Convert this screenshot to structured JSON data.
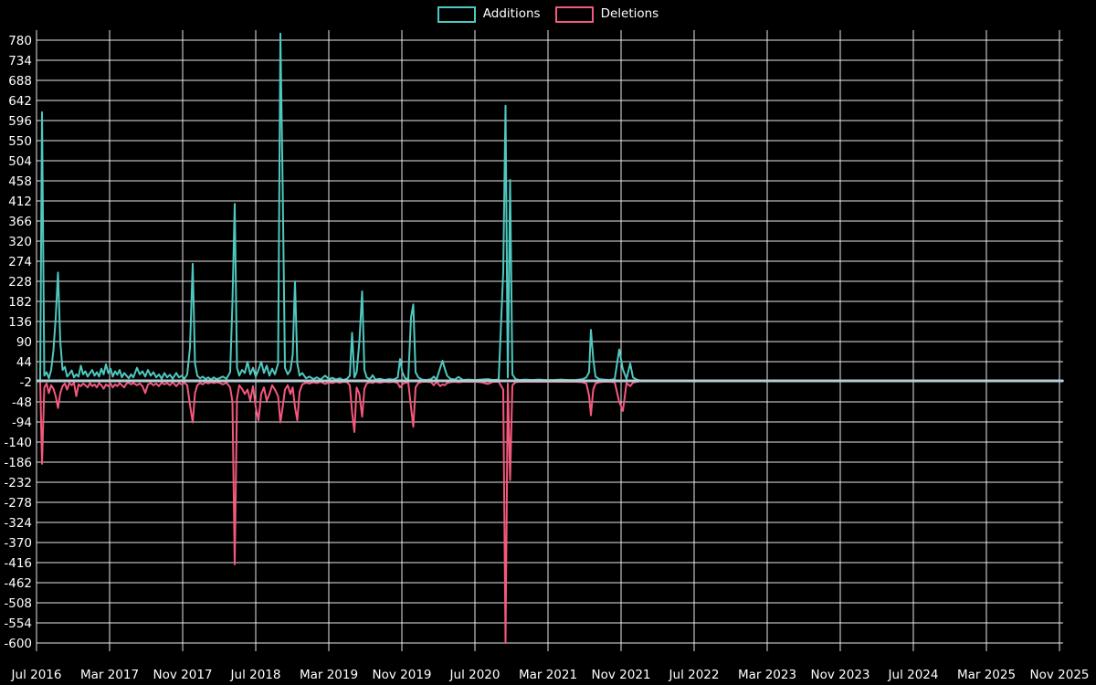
{
  "legend": {
    "items": [
      {
        "label": "Additions",
        "color": "#4ec9c0"
      },
      {
        "label": "Deletions",
        "color": "#f4587c"
      }
    ]
  },
  "colors": {
    "background": "#000000",
    "grid": "#e9e9e9",
    "tick_text": "#ffffff",
    "additions": "#4ec9c0",
    "deletions": "#f4587c",
    "zero_line": "#b5cdd4"
  },
  "chart_data": {
    "type": "line",
    "title": "",
    "xlabel": "",
    "ylabel": "",
    "legend_position": "top-center",
    "grid": true,
    "y_ticks": [
      780,
      734,
      688,
      642,
      596,
      550,
      504,
      458,
      412,
      366,
      320,
      274,
      228,
      182,
      136,
      90,
      44,
      -2,
      -48,
      -94,
      -140,
      -186,
      -232,
      -278,
      -324,
      -370,
      -416,
      -462,
      -508,
      -554,
      -600
    ],
    "x_ticks": [
      "Jul 2016",
      "Mar 2017",
      "Nov 2017",
      "Jul 2018",
      "Mar 2019",
      "Nov 2019",
      "Jul 2020",
      "Mar 2021",
      "Nov 2021",
      "Jul 2022",
      "Mar 2023",
      "Nov 2023",
      "Jul 2024",
      "Mar 2025",
      "Nov 2025"
    ],
    "ylim": [
      -622,
      803
    ],
    "x_unit": "months_since_jul_2016",
    "point_format": [
      "month_index",
      "additions",
      "deletions"
    ],
    "series_names": [
      "Additions",
      "Deletions"
    ],
    "points": [
      [
        0.4,
        2,
        -2
      ],
      [
        0.6,
        615,
        -190
      ],
      [
        0.85,
        12,
        -15
      ],
      [
        1.1,
        20,
        -6
      ],
      [
        1.35,
        6,
        -28
      ],
      [
        1.6,
        25,
        -10
      ],
      [
        1.85,
        70,
        -18
      ],
      [
        2.1,
        145,
        -35
      ],
      [
        2.35,
        248,
        -62
      ],
      [
        2.6,
        90,
        -28
      ],
      [
        2.85,
        25,
        -12
      ],
      [
        3.1,
        32,
        -6
      ],
      [
        3.35,
        10,
        -20
      ],
      [
        3.6,
        16,
        -5
      ],
      [
        3.85,
        24,
        -10
      ],
      [
        4.1,
        8,
        -4
      ],
      [
        4.35,
        15,
        -35
      ],
      [
        4.6,
        10,
        -8
      ],
      [
        4.85,
        35,
        -12
      ],
      [
        5.1,
        15,
        -6
      ],
      [
        5.35,
        22,
        -10
      ],
      [
        5.6,
        10,
        -15
      ],
      [
        5.85,
        18,
        -5
      ],
      [
        6.1,
        25,
        -12
      ],
      [
        6.35,
        12,
        -8
      ],
      [
        6.6,
        20,
        -15
      ],
      [
        6.85,
        10,
        -5
      ],
      [
        7.1,
        28,
        -10
      ],
      [
        7.35,
        15,
        -18
      ],
      [
        7.6,
        38,
        -8
      ],
      [
        7.85,
        18,
        -12
      ],
      [
        8.1,
        28,
        -6
      ],
      [
        8.35,
        10,
        -15
      ],
      [
        8.6,
        22,
        -8
      ],
      [
        8.85,
        14,
        -12
      ],
      [
        9.1,
        25,
        -5
      ],
      [
        9.35,
        8,
        -10
      ],
      [
        9.6,
        18,
        -15
      ],
      [
        9.85,
        12,
        -6
      ],
      [
        10.1,
        6,
        -4
      ],
      [
        10.35,
        15,
        -8
      ],
      [
        10.6,
        8,
        -5
      ],
      [
        11.0,
        30,
        -10
      ],
      [
        11.3,
        15,
        -6
      ],
      [
        11.6,
        22,
        -12
      ],
      [
        11.9,
        10,
        -28
      ],
      [
        12.2,
        25,
        -8
      ],
      [
        12.5,
        12,
        -5
      ],
      [
        12.8,
        20,
        -10
      ],
      [
        13.1,
        8,
        -6
      ],
      [
        13.4,
        15,
        -12
      ],
      [
        13.7,
        5,
        -4
      ],
      [
        14.0,
        18,
        -8
      ],
      [
        14.3,
        8,
        -5
      ],
      [
        14.6,
        14,
        -10
      ],
      [
        14.9,
        5,
        -3
      ],
      [
        15.3,
        18,
        -12
      ],
      [
        15.6,
        8,
        -5
      ],
      [
        15.9,
        12,
        -8
      ],
      [
        16.2,
        5,
        -4
      ],
      [
        16.5,
        15,
        -10
      ],
      [
        16.8,
        76,
        -55
      ],
      [
        17.1,
        268,
        -95
      ],
      [
        17.35,
        40,
        -28
      ],
      [
        17.6,
        12,
        -10
      ],
      [
        17.9,
        6,
        -5
      ],
      [
        18.2,
        10,
        -8
      ],
      [
        18.5,
        4,
        -3
      ],
      [
        18.8,
        8,
        -6
      ],
      [
        19.1,
        3,
        -3
      ],
      [
        19.4,
        8,
        -5
      ],
      [
        19.7,
        4,
        -3
      ],
      [
        20.0,
        6,
        -4
      ],
      [
        20.4,
        10,
        -8
      ],
      [
        20.8,
        5,
        -4
      ],
      [
        21.2,
        20,
        -15
      ],
      [
        21.45,
        180,
        -48
      ],
      [
        21.7,
        405,
        -420
      ],
      [
        21.95,
        30,
        -40
      ],
      [
        22.2,
        12,
        -10
      ],
      [
        22.5,
        25,
        -18
      ],
      [
        22.8,
        18,
        -30
      ],
      [
        23.1,
        44,
        -20
      ],
      [
        23.4,
        15,
        -45
      ],
      [
        23.7,
        30,
        -12
      ],
      [
        24.0,
        10,
        -60
      ],
      [
        24.3,
        25,
        -90
      ],
      [
        24.6,
        44,
        -30
      ],
      [
        24.9,
        18,
        -15
      ],
      [
        25.2,
        35,
        -45
      ],
      [
        25.5,
        12,
        -30
      ],
      [
        25.8,
        28,
        -10
      ],
      [
        26.1,
        15,
        -20
      ],
      [
        26.45,
        40,
        -35
      ],
      [
        26.7,
        795,
        -95
      ],
      [
        26.95,
        445,
        -60
      ],
      [
        27.2,
        30,
        -20
      ],
      [
        27.5,
        15,
        -10
      ],
      [
        27.8,
        25,
        -30
      ],
      [
        28.05,
        60,
        -15
      ],
      [
        28.3,
        228,
        -60
      ],
      [
        28.55,
        40,
        -90
      ],
      [
        28.8,
        12,
        -25
      ],
      [
        29.1,
        18,
        -8
      ],
      [
        29.5,
        6,
        -4
      ],
      [
        29.9,
        10,
        -6
      ],
      [
        30.3,
        4,
        -3
      ],
      [
        30.7,
        8,
        -5
      ],
      [
        31.1,
        3,
        -2
      ],
      [
        31.6,
        12,
        -7
      ],
      [
        32.0,
        4,
        -3
      ],
      [
        32.4,
        7,
        -5
      ],
      [
        32.8,
        3,
        -2
      ],
      [
        33.2,
        6,
        -4
      ],
      [
        33.6,
        2,
        -2
      ],
      [
        34.0,
        5,
        -3
      ],
      [
        34.3,
        12,
        -10
      ],
      [
        34.55,
        110,
        -72
      ],
      [
        34.8,
        8,
        -117
      ],
      [
        35.05,
        20,
        -15
      ],
      [
        35.35,
        90,
        -30
      ],
      [
        35.65,
        205,
        -82
      ],
      [
        35.9,
        25,
        -18
      ],
      [
        36.15,
        8,
        -6
      ],
      [
        36.5,
        4,
        -3
      ],
      [
        36.8,
        13,
        -5
      ],
      [
        37.1,
        3,
        -2
      ],
      [
        37.6,
        5,
        -4
      ],
      [
        38.1,
        2,
        -2
      ],
      [
        38.6,
        4,
        -3
      ],
      [
        39.1,
        3,
        -2
      ],
      [
        39.55,
        8,
        -5
      ],
      [
        39.8,
        50,
        -15
      ],
      [
        40.05,
        20,
        -8
      ],
      [
        40.35,
        6,
        -4
      ],
      [
        40.7,
        4,
        -3
      ],
      [
        41.0,
        145,
        -60
      ],
      [
        41.25,
        175,
        -105
      ],
      [
        41.5,
        20,
        -15
      ],
      [
        41.8,
        8,
        -5
      ],
      [
        42.2,
        3,
        -2
      ],
      [
        42.7,
        2,
        -2
      ],
      [
        43.2,
        4,
        -3
      ],
      [
        43.5,
        10,
        -10
      ],
      [
        43.8,
        3,
        -2
      ],
      [
        44.2,
        30,
        -12
      ],
      [
        44.45,
        46,
        -8
      ],
      [
        44.7,
        28,
        -10
      ],
      [
        44.95,
        12,
        -5
      ],
      [
        45.3,
        5,
        -3
      ],
      [
        45.8,
        3,
        -2
      ],
      [
        46.2,
        9,
        -3
      ],
      [
        46.7,
        2,
        -2
      ],
      [
        47.3,
        3,
        -2
      ],
      [
        48.0,
        2,
        -2
      ],
      [
        48.7,
        3,
        -3
      ],
      [
        49.4,
        4,
        -7
      ],
      [
        50.0,
        2,
        -2
      ],
      [
        50.6,
        3,
        -2
      ],
      [
        51.1,
        250,
        -20
      ],
      [
        51.35,
        630,
        -600
      ],
      [
        51.6,
        8,
        -6
      ],
      [
        51.85,
        460,
        -227
      ],
      [
        52.1,
        15,
        -10
      ],
      [
        52.45,
        4,
        -3
      ],
      [
        52.9,
        2,
        -2
      ],
      [
        53.5,
        3,
        -2
      ],
      [
        54.2,
        2,
        -2
      ],
      [
        55.0,
        3,
        -2
      ],
      [
        55.8,
        2,
        -2
      ],
      [
        56.6,
        2,
        -2
      ],
      [
        57.4,
        3,
        -2
      ],
      [
        58.2,
        2,
        -2
      ],
      [
        59.0,
        2,
        -2
      ],
      [
        59.8,
        4,
        -3
      ],
      [
        60.2,
        8,
        -6
      ],
      [
        60.5,
        20,
        -34
      ],
      [
        60.7,
        117,
        -79
      ],
      [
        60.95,
        51,
        -20
      ],
      [
        61.2,
        10,
        -6
      ],
      [
        61.6,
        4,
        -3
      ],
      [
        62.1,
        3,
        -2
      ],
      [
        62.7,
        2,
        -2
      ],
      [
        63.3,
        4,
        -3
      ],
      [
        63.8,
        72,
        -48
      ],
      [
        64.2,
        26,
        -69
      ],
      [
        64.6,
        5,
        -5
      ],
      [
        65.0,
        40,
        -12
      ],
      [
        65.3,
        8,
        -4
      ],
      [
        65.7,
        3,
        -2
      ],
      [
        66.2,
        0,
        0
      ],
      [
        112.4,
        0,
        0
      ]
    ]
  }
}
